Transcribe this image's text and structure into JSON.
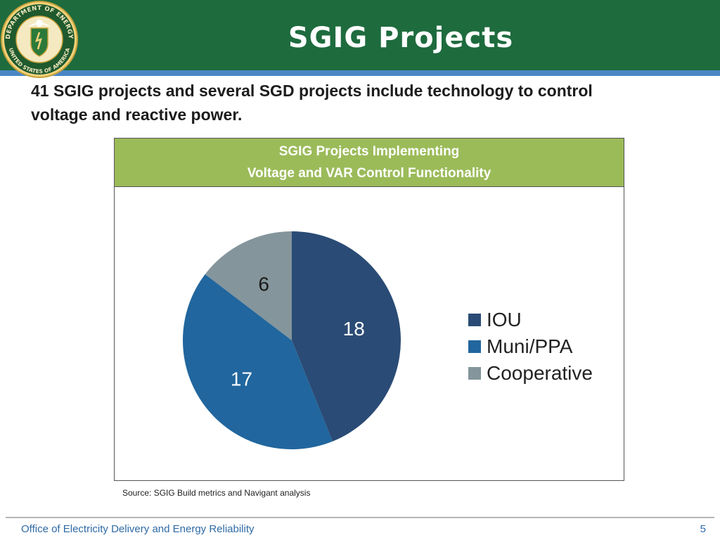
{
  "header": {
    "title": "SGIG Projects",
    "seal_text_top": "DEPARTMENT OF ENERGY",
    "seal_text_bottom": "UNITED STATES OF AMERICA"
  },
  "subtitle": {
    "line1": "41 SGIG projects and several SGD projects include technology to control",
    "line2": "voltage and reactive power."
  },
  "chart_header": {
    "line1": "SGIG Projects Implementing",
    "line2": "Voltage and VAR Control Functionality"
  },
  "chart_data": {
    "type": "pie",
    "title": "SGIG Projects Implementing Voltage and VAR Control Functionality",
    "categories": [
      "IOU",
      "Muni/PPA",
      "Cooperative"
    ],
    "values": [
      18,
      17,
      6
    ],
    "colors": [
      "#2a4b75",
      "#21669e",
      "#84959c"
    ],
    "legend_position": "right",
    "start": "top, clockwise"
  },
  "source": "Source: SGIG Build metrics and Navigant analysis",
  "footer": {
    "text": "Office of Electricity Delivery and Energy Reliability",
    "page": "5"
  }
}
